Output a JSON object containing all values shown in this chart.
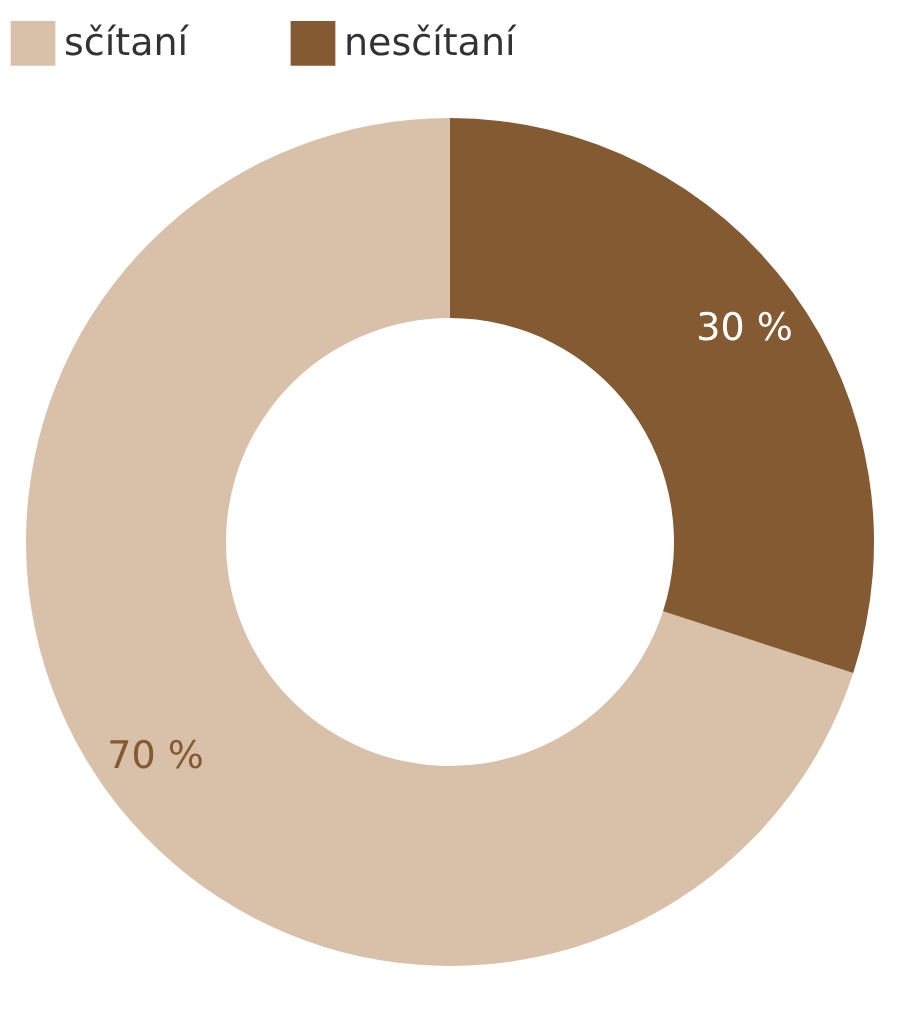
{
  "chart_data": {
    "type": "donut",
    "categories": [
      "sčítaní",
      "nesčítaní"
    ],
    "values": [
      70,
      30
    ],
    "colors": [
      "#d9c0a9",
      "#835a31"
    ],
    "value_labels": [
      "70 %",
      "30 %"
    ],
    "legend": "top"
  }
}
